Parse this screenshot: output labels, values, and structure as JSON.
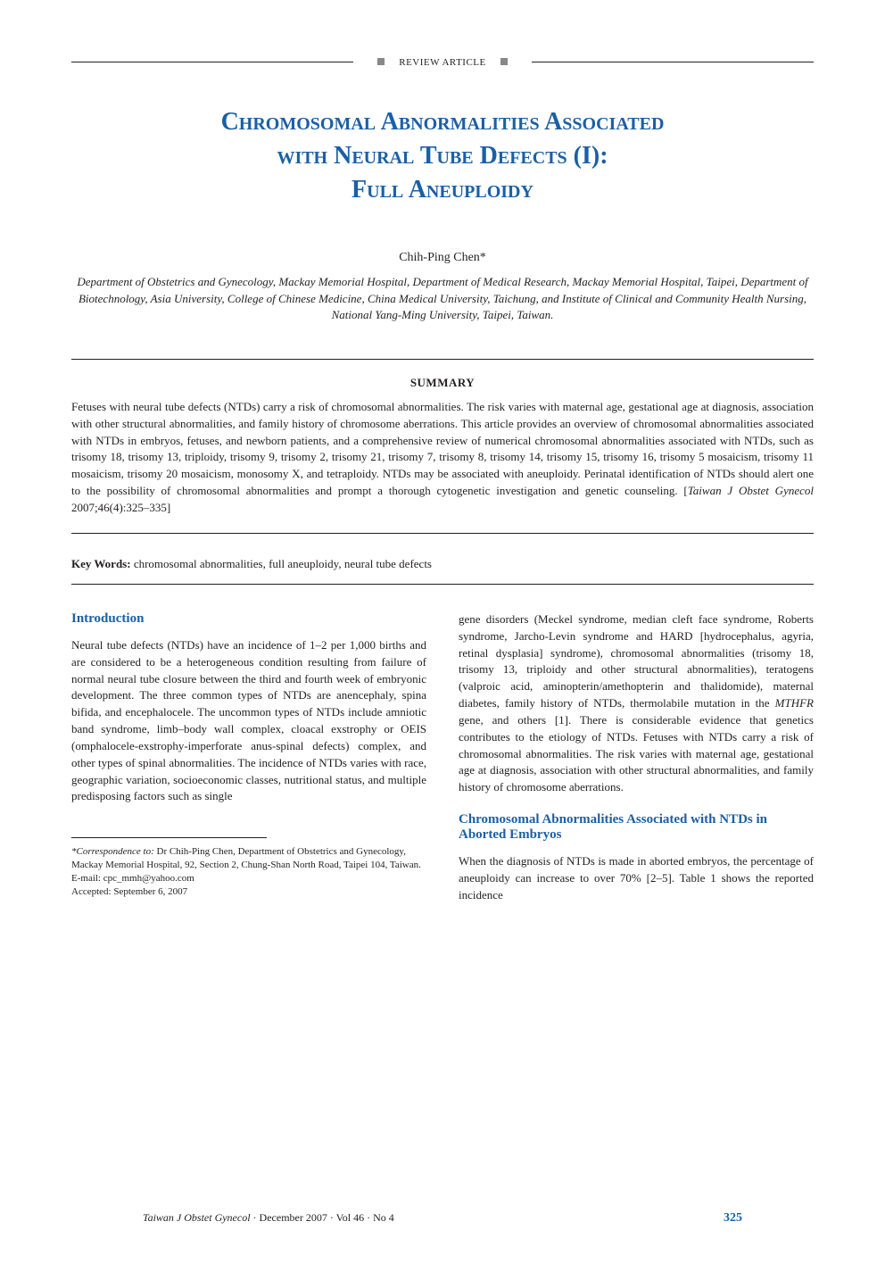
{
  "header": {
    "section_label": "REVIEW ARTICLE"
  },
  "title_lines": [
    "Chromosomal Abnormalities Associated",
    "with Neural Tube Defects (I):",
    "Full Aneuploidy"
  ],
  "author": "Chih-Ping Chen*",
  "affiliation": "Department of Obstetrics and Gynecology, Mackay Memorial Hospital, Department of Medical Research, Mackay Memorial Hospital, Taipei, Department of Biotechnology, Asia University, College of Chinese Medicine, China Medical University, Taichung, and Institute of Clinical and Community Health Nursing, National Yang-Ming University, Taipei, Taiwan.",
  "summary": {
    "heading": "SUMMARY",
    "text_before_cite": "Fetuses with neural tube defects (NTDs) carry a risk of chromosomal abnormalities. The risk varies with maternal age, gestational age at diagnosis, association with other structural abnormalities, and family history of chromosome aberrations. This article provides an overview of chromosomal abnormalities associated with NTDs in embryos, fetuses, and newborn patients, and a comprehensive review of numerical chromosomal abnormalities associated with NTDs, such as trisomy 18, trisomy 13, triploidy, trisomy 9, trisomy 2, trisomy 21, trisomy 7, trisomy 8, trisomy 14, trisomy 15, trisomy 16, trisomy 5 mosaicism, trisomy 11 mosaicism, trisomy 20 mosaicism, monosomy X, and tetraploidy. NTDs may be associated with aneuploidy. Perinatal identification of NTDs should alert one to the possibility of chromosomal abnormalities and prompt a thorough cytogenetic investigation and genetic counseling. [",
    "citation": "Taiwan J Obstet Gynecol",
    "text_after_cite": " 2007;46(4):325–335]"
  },
  "keywords": {
    "label": "Key Words:",
    "text": " chromosomal abnormalities, full aneuploidy, neural tube defects"
  },
  "sections": {
    "intro_heading": "Introduction",
    "intro_p1_a": "Neural tube defects (NTDs) have an incidence of 1–2 per 1,000 births and are considered to be a heterogeneous condition resulting from failure of normal neural tube closure between the third and fourth week of embryonic development. The three common types of NTDs are anencephaly, spina bifida, and encephalocele. The uncommon types of NTDs include amniotic band syndrome, limb–body wall complex, cloacal exstrophy or OEIS (omphalocele-exstrophy-imperforate anus-spinal defects) complex, and other types of spinal abnormalities. The incidence of NTDs varies with race, geographic variation, socioeconomic classes, nutritional status, and multiple predisposing factors such as single",
    "intro_p1_b_before_gene": "gene disorders (Meckel syndrome, median cleft face syndrome, Roberts syndrome, Jarcho-Levin syndrome and HARD [hydrocephalus, agyria, retinal dysplasia] syndrome), chromosomal abnormalities (trisomy 18, trisomy 13, triploidy and other structural abnormalities), teratogens (valproic acid, aminopterin/amethopterin and thalidomide), maternal diabetes, family history of NTDs, thermolabile mutation in the ",
    "gene": "MTHFR",
    "intro_p1_b_after_gene": " gene, and others [1]. There is considerable evidence that genetics contributes to the etiology of NTDs. Fetuses with NTDs carry a risk of chromosomal abnormalities. The risk varies with maternal age, gestational age at diagnosis, association with other structural abnormalities, and family history of chromosome aberrations.",
    "sec2_heading": "Chromosomal Abnormalities Associated with NTDs in Aborted Embryos",
    "sec2_p1": "When the diagnosis of NTDs is made in aborted embryos, the percentage of aneuploidy can increase to over 70% [2–5]. Table 1 shows the reported incidence"
  },
  "footnote": {
    "correspondence_label": "*Correspondence to:",
    "correspondence_text": " Dr Chih-Ping Chen, Department of Obstetrics and Gynecology, Mackay Memorial Hospital, 92, Section 2, Chung-Shan North Road, Taipei 104, Taiwan.",
    "email": "E-mail: cpc_mmh@yahoo.com",
    "accepted": "Accepted: September 6, 2007"
  },
  "footer": {
    "journal": "Taiwan J Obstet Gynecol",
    "issue": " · December 2007 · Vol 46 · No 4",
    "page": "325"
  },
  "colors": {
    "heading_blue": "#1b5fa6",
    "body_text": "#231f20",
    "rule": "#231f20",
    "box_gray": "#888888",
    "background": "#ffffff"
  },
  "typography": {
    "title_fontsize_pt": 22,
    "subheading_fontsize_pt": 12,
    "body_fontsize_pt": 10,
    "footnote_fontsize_pt": 8.5,
    "font_family": "Times New Roman"
  }
}
